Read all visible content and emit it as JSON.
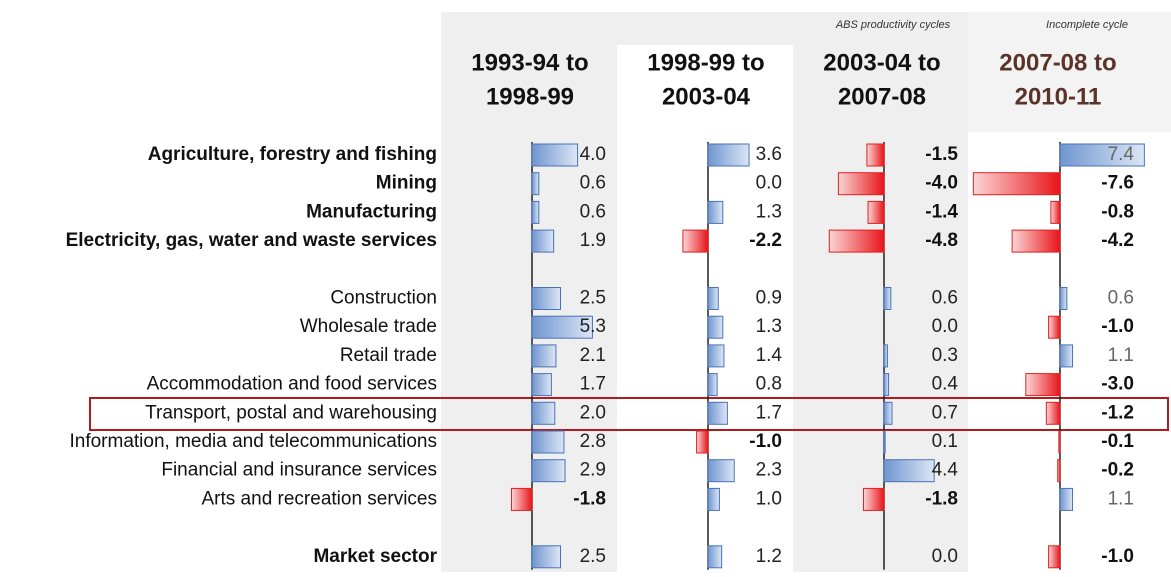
{
  "groups": [
    {
      "bold": true,
      "rows": [
        "Agriculture, forestry and fishing",
        "Mining",
        "Manufacturing",
        "Electricity, gas, water and waste services"
      ]
    },
    {
      "bold": false,
      "rows": [
        "Construction",
        "Wholesale trade",
        "Retail trade",
        "Accommodation and food services",
        "Transport, postal and warehousing",
        "Information, media and telecommunications",
        "Financial and insurance services",
        "Arts and recreation services"
      ]
    },
    {
      "bold": true,
      "rows": [
        "Market sector"
      ]
    }
  ],
  "columns": [
    {
      "header": [
        "1993-94 to",
        "1998-99"
      ],
      "values": [
        4.0,
        0.6,
        0.6,
        1.9,
        2.5,
        5.3,
        2.1,
        1.7,
        2.0,
        2.8,
        2.9,
        -1.8,
        2.5
      ],
      "value_labels": [
        "4.0",
        "0.6",
        "0.6",
        "1.9",
        "2.5",
        "5.3",
        "2.1",
        "1.7",
        "2.0",
        "2.8",
        "2.9",
        "-1.8",
        "2.5"
      ]
    },
    {
      "header": [
        "1998-99 to",
        "2003-04"
      ],
      "values": [
        3.6,
        0.0,
        1.3,
        -2.2,
        0.9,
        1.3,
        1.4,
        0.8,
        1.7,
        -1.0,
        2.3,
        1.0,
        1.2
      ],
      "value_labels": [
        "3.6",
        "0.0",
        "1.3",
        "-2.2",
        "0.9",
        "1.3",
        "1.4",
        "0.8",
        "1.7",
        "-1.0",
        "2.3",
        "1.0",
        "1.2"
      ]
    },
    {
      "note": "ABS productivity cycles",
      "header": [
        "2003-04 to",
        "2007-08"
      ],
      "values": [
        -1.5,
        -4.0,
        -1.4,
        -4.8,
        0.6,
        0.0,
        0.3,
        0.4,
        0.7,
        0.1,
        4.4,
        -1.8,
        0.0
      ],
      "value_labels": [
        "-1.5",
        "-4.0",
        "-1.4",
        "-4.8",
        "0.6",
        "0.0",
        "0.3",
        "0.4",
        "0.7",
        "0.1",
        "4.4",
        "-1.8",
        "0.0"
      ]
    },
    {
      "note": "Incomplete cycle",
      "header": [
        "2007-08 to",
        "2010-11"
      ],
      "values": [
        7.4,
        -7.6,
        -0.8,
        -4.2,
        0.6,
        -1.0,
        1.1,
        -3.0,
        -1.2,
        -0.1,
        -0.2,
        1.1,
        -1.0
      ],
      "value_labels": [
        "7.4",
        "-7.6",
        "-0.8",
        "-4.2",
        "0.6",
        "-1.0",
        "1.1",
        "-3.0",
        "-1.2",
        "-0.1",
        "-0.2",
        "1.1",
        "-1.0"
      ]
    }
  ]
}
